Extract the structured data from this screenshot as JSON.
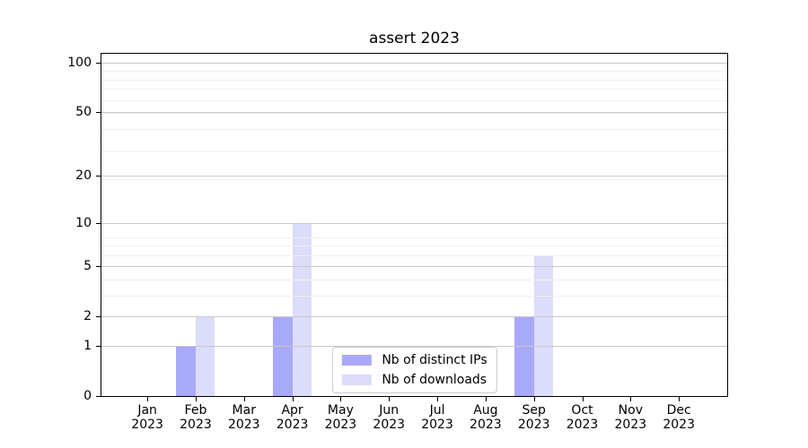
{
  "title": "assert 2023",
  "colors": {
    "distinct_ips": "#a9a9fa",
    "downloads": "#dcdcfb",
    "grid_major": "#c9c9c9",
    "grid_minor": "#efefef",
    "spine": "#000000",
    "legend_border": "#cccccc",
    "background": "#ffffff"
  },
  "chart_data": {
    "type": "bar",
    "title": "assert 2023",
    "categories": [
      {
        "month": "Jan",
        "year": "2023"
      },
      {
        "month": "Feb",
        "year": "2023"
      },
      {
        "month": "Mar",
        "year": "2023"
      },
      {
        "month": "Apr",
        "year": "2023"
      },
      {
        "month": "May",
        "year": "2023"
      },
      {
        "month": "Jun",
        "year": "2023"
      },
      {
        "month": "Jul",
        "year": "2023"
      },
      {
        "month": "Aug",
        "year": "2023"
      },
      {
        "month": "Sep",
        "year": "2023"
      },
      {
        "month": "Oct",
        "year": "2023"
      },
      {
        "month": "Nov",
        "year": "2023"
      },
      {
        "month": "Dec",
        "year": "2023"
      }
    ],
    "series": [
      {
        "name": "Nb of distinct IPs",
        "slug": "distinct-ips",
        "color": "#a9a9fa",
        "values": [
          0,
          1,
          0,
          2,
          0,
          0,
          0,
          0,
          2,
          0,
          0,
          0
        ]
      },
      {
        "name": "Nb of downloads",
        "slug": "downloads",
        "color": "#dcdcfb",
        "values": [
          0,
          2,
          0,
          10,
          0,
          0,
          0,
          0,
          6,
          0,
          0,
          0
        ]
      }
    ],
    "xlabel": "",
    "ylabel": "",
    "yscale": "log1p",
    "ylim": [
      0,
      113
    ],
    "y_ticks": [
      0,
      1,
      2,
      5,
      10,
      20,
      50,
      100
    ],
    "y_tick_labels": [
      "0",
      "1",
      "2",
      "5",
      "10",
      "20",
      "50",
      "100"
    ],
    "y_minor_gridlines": [
      3,
      4,
      6,
      7,
      8,
      19,
      29,
      39,
      49,
      59,
      69,
      79,
      89
    ],
    "grid": true,
    "bar_width_fraction": 0.4,
    "legend_position": "lower center"
  }
}
